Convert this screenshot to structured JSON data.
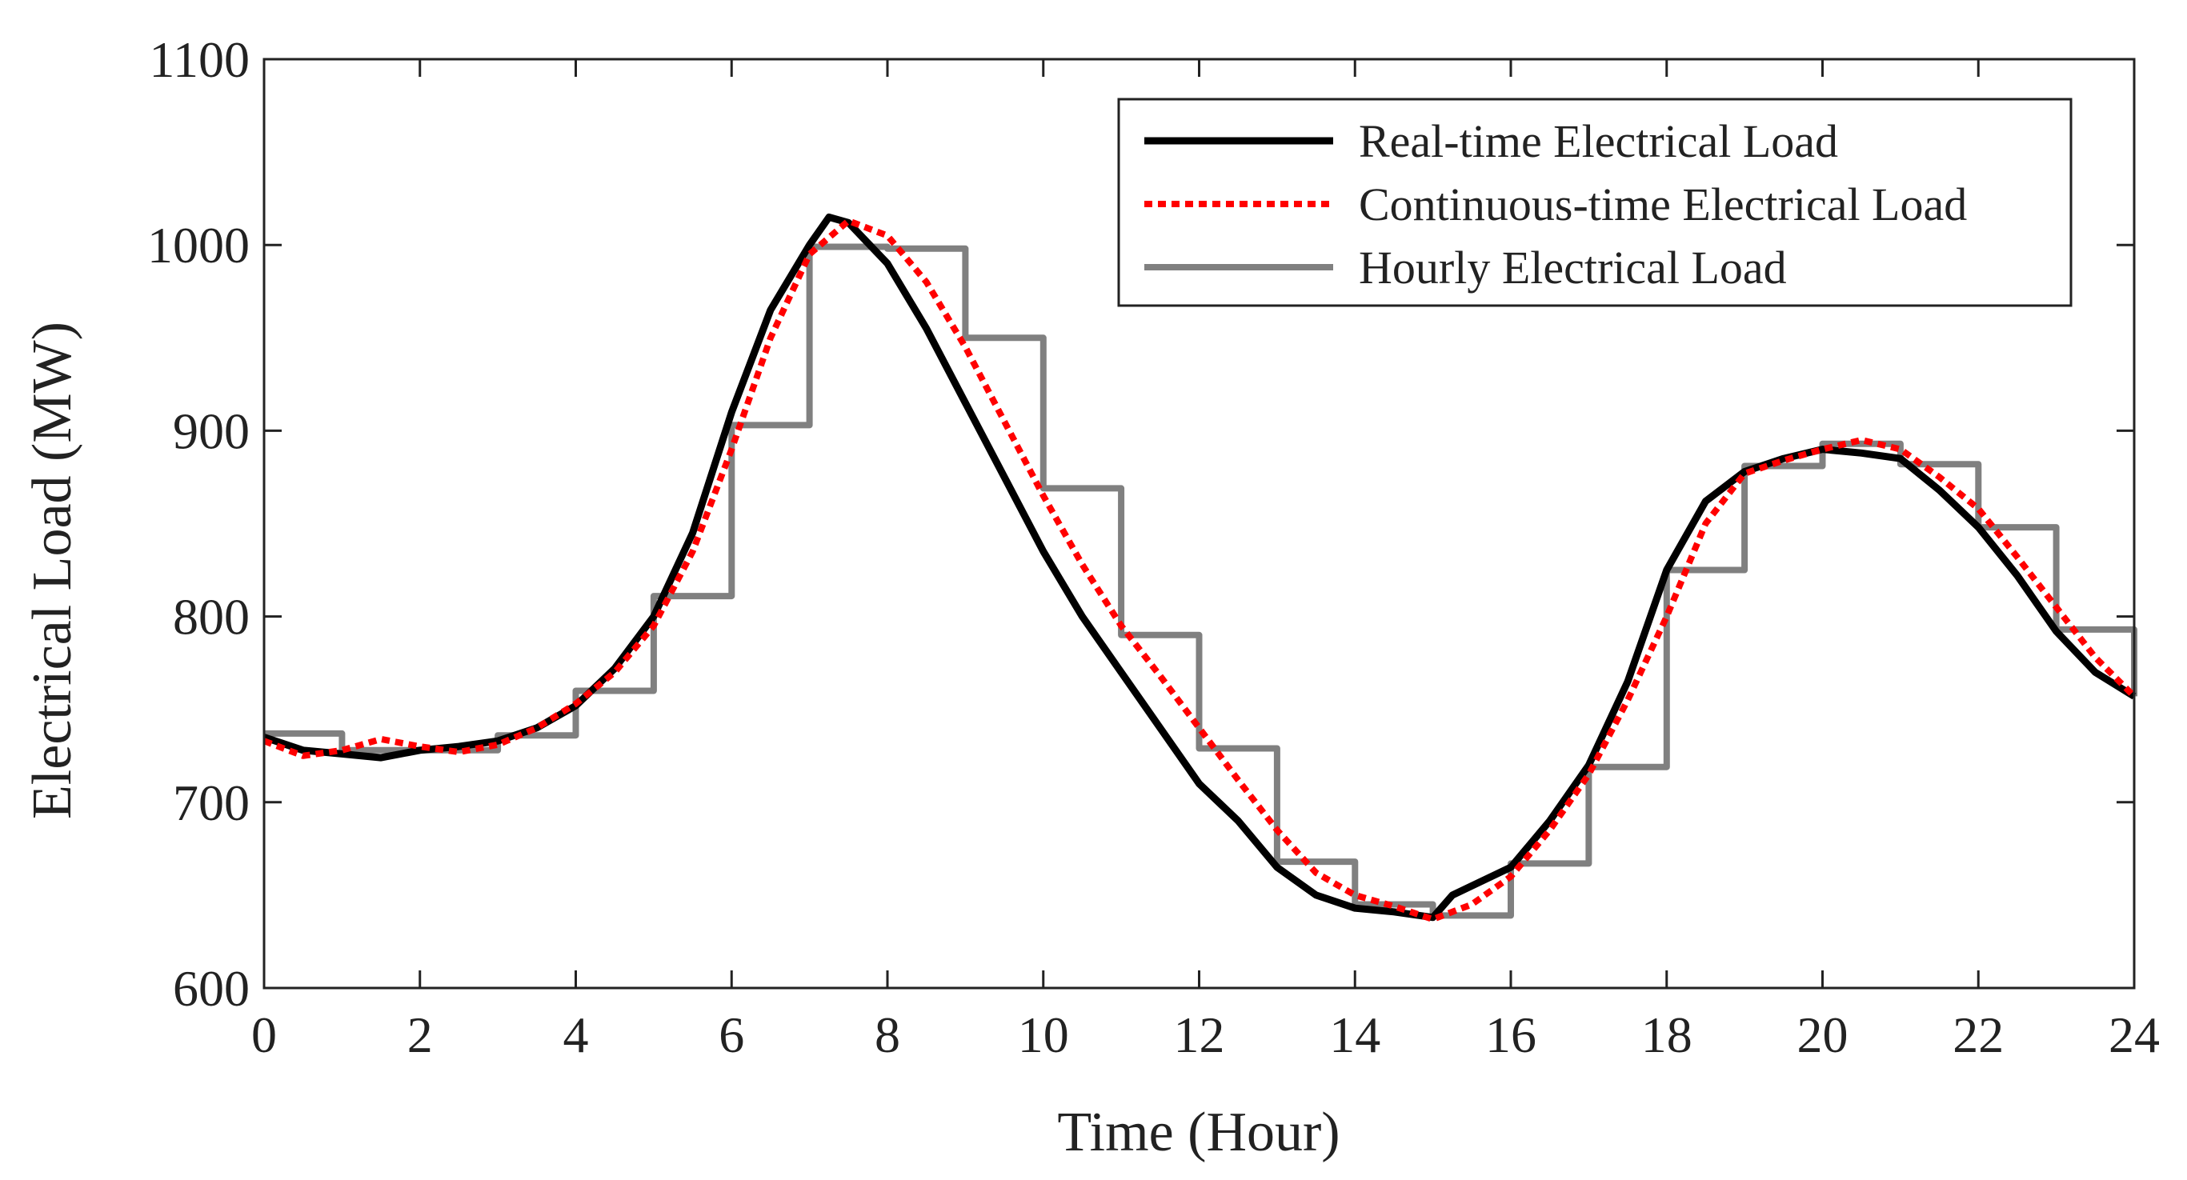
{
  "chart_data": {
    "type": "line",
    "title": "",
    "xlabel": "Time (Hour)",
    "ylabel": "Electrical Load (MW)",
    "xlim": [
      0,
      24
    ],
    "ylim": [
      600,
      1100
    ],
    "xticks": [
      0,
      2,
      4,
      6,
      8,
      10,
      12,
      14,
      16,
      18,
      20,
      22,
      24
    ],
    "yticks": [
      600,
      700,
      800,
      900,
      1000,
      1100
    ],
    "xtick_labels": [
      "0",
      "2",
      "4",
      "6",
      "8",
      "10",
      "12",
      "14",
      "16",
      "18",
      "20",
      "22",
      "24"
    ],
    "ytick_labels": [
      "600",
      "700",
      "800",
      "900",
      "1000",
      "1100"
    ],
    "grid": false,
    "legend_position": "top-right",
    "series": [
      {
        "name": "Real-time Electrical Load",
        "style": "solid",
        "color": "#000000",
        "x": [
          0,
          0.5,
          1,
          1.5,
          2,
          2.5,
          3,
          3.5,
          4,
          4.5,
          5,
          5.5,
          6,
          6.5,
          7,
          7.25,
          7.5,
          8,
          8.5,
          9,
          9.5,
          10,
          10.5,
          11,
          11.5,
          12,
          12.5,
          13,
          13.5,
          14,
          14.5,
          15,
          15.25,
          15.5,
          16,
          16.5,
          17,
          17.5,
          18,
          18.5,
          19,
          19.5,
          20,
          20.5,
          21,
          21.5,
          22,
          22.5,
          23,
          23.5,
          24
        ],
        "y": [
          735,
          728,
          726,
          724,
          728,
          730,
          733,
          740,
          752,
          772,
          800,
          845,
          910,
          965,
          1000,
          1015,
          1012,
          990,
          955,
          915,
          875,
          835,
          800,
          770,
          740,
          710,
          690,
          665,
          650,
          643,
          641,
          638,
          650,
          655,
          665,
          690,
          720,
          765,
          825,
          862,
          878,
          885,
          890,
          888,
          885,
          868,
          848,
          822,
          792,
          770,
          757
        ]
      },
      {
        "name": "Continuous-time Electrical Load",
        "style": "dotted",
        "color": "#ff0000",
        "x": [
          0,
          0.5,
          1,
          1.5,
          2,
          2.5,
          3,
          3.5,
          4,
          4.5,
          5,
          5.5,
          6,
          6.5,
          7,
          7.5,
          8,
          8.5,
          9,
          9.5,
          10,
          10.5,
          11,
          11.5,
          12,
          12.5,
          13,
          13.5,
          14,
          14.5,
          15,
          15.5,
          16,
          16.5,
          17,
          17.5,
          18,
          18.5,
          19,
          19.5,
          20,
          20.5,
          21,
          21.5,
          22,
          22.5,
          23,
          23.5,
          24
        ],
        "y": [
          733,
          725,
          728,
          734,
          730,
          727,
          731,
          740,
          753,
          770,
          795,
          835,
          890,
          950,
          995,
          1013,
          1005,
          980,
          945,
          905,
          865,
          828,
          795,
          768,
          740,
          712,
          685,
          662,
          650,
          644,
          637,
          645,
          660,
          685,
          715,
          755,
          800,
          850,
          877,
          884,
          890,
          895,
          890,
          875,
          858,
          832,
          805,
          778,
          757
        ]
      },
      {
        "name": "Hourly Electrical Load",
        "style": "step",
        "color": "#808080",
        "hours": [
          0,
          1,
          2,
          3,
          4,
          5,
          6,
          7,
          8,
          9,
          10,
          11,
          12,
          13,
          14,
          15,
          16,
          17,
          18,
          19,
          20,
          21,
          22,
          23
        ],
        "values": [
          737,
          728,
          728,
          736,
          760,
          811,
          903,
          999,
          998,
          950,
          869,
          790,
          729,
          668,
          645,
          639,
          667,
          719,
          825,
          881,
          893,
          882,
          848,
          793
        ],
        "end_value": 757
      }
    ]
  }
}
